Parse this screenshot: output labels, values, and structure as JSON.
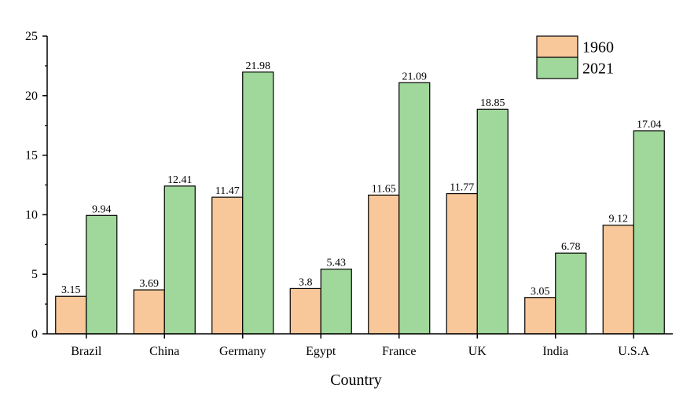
{
  "chart_data": {
    "type": "bar",
    "categories": [
      "Brazil",
      "China",
      "Germany",
      "Egypt",
      "France",
      "UK",
      "India",
      "U.S.A"
    ],
    "series": [
      {
        "name": "1960",
        "color": "#f9c89a",
        "values": [
          3.15,
          3.69,
          11.47,
          3.8,
          11.65,
          11.77,
          3.05,
          9.12
        ]
      },
      {
        "name": "2021",
        "color": "#9fd89a",
        "values": [
          9.94,
          12.41,
          21.98,
          5.43,
          21.09,
          18.85,
          6.78,
          17.04
        ]
      }
    ],
    "data_labels": [
      [
        "3.15",
        "3.69",
        "11.47",
        "3.8",
        "11.65",
        "11.77",
        "3.05",
        "9.12"
      ],
      [
        "9.94",
        "12.41",
        "21.98",
        "5.43",
        "21.09",
        "18.85",
        "6.78",
        "17.04"
      ]
    ],
    "xlabel": "Country",
    "ylabel": "",
    "ylim": [
      0,
      25
    ],
    "yticks": [
      "0",
      "5",
      "10",
      "15",
      "20",
      "25"
    ],
    "grid": false,
    "legend_position": "top-right"
  }
}
